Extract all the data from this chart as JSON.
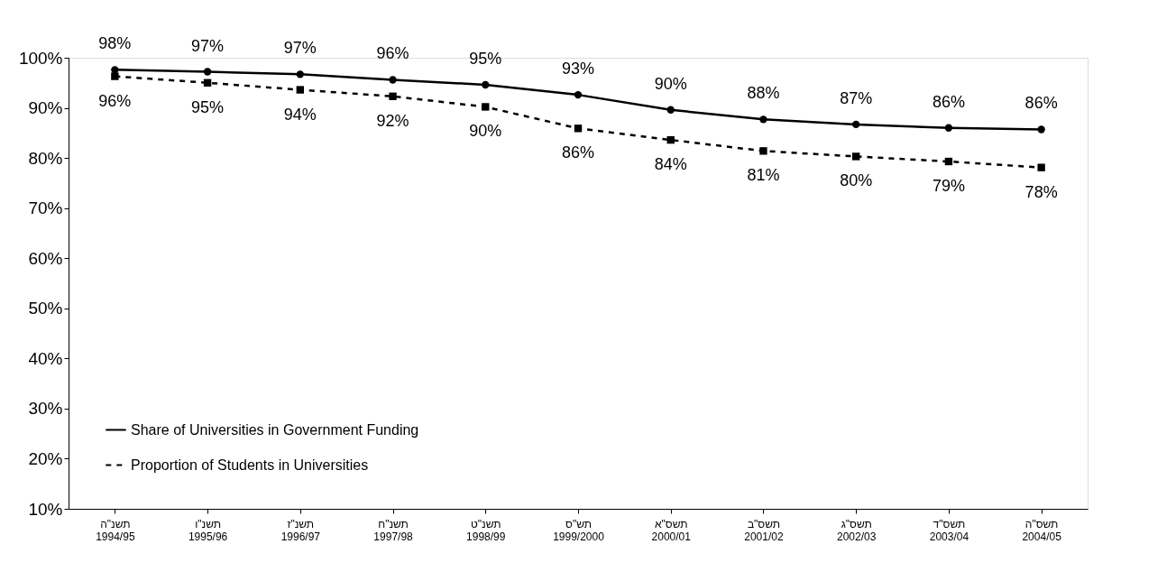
{
  "chart_data": {
    "type": "line",
    "categories": [
      "תשנ\"ה\n1994/95",
      "תשנ\"ו\n1995/96",
      "תשנ\"ז\n1996/97",
      "תשנ\"ח\n1997/98",
      "תשנ\"ט\n1998/99",
      "תש\"ס\n1999/2000",
      "תשס\"א\n2000/01",
      "תשס\"ב\n2001/02",
      "תשס\"ג\n2002/03",
      "תשס\"ד\n2003/04",
      "תשס\"ה\n2004/05"
    ],
    "series": [
      {
        "name": "Share of Universities in Government Funding",
        "color": "#000000",
        "marker": "circle",
        "line_style": "solid",
        "values": [
          97.6,
          97.2,
          96.7,
          95.6,
          94.6,
          92.6,
          89.6,
          87.7,
          86.7,
          86.0,
          85.7
        ],
        "value_labels": [
          "98%",
          "97%",
          "97%",
          "96%",
          "95%",
          "93%",
          "90%",
          "88%",
          "87%",
          "86%",
          "86%"
        ]
      },
      {
        "name": "Proportion of Students in Universities",
        "color": "#000000",
        "marker": "square",
        "line_style": "dashed",
        "values": [
          96.3,
          95.0,
          93.6,
          92.3,
          90.2,
          85.9,
          83.6,
          81.4,
          80.3,
          79.3,
          78.1
        ],
        "value_labels": [
          "96%",
          "95%",
          "94%",
          "92%",
          "90%",
          "86%",
          "84%",
          "81%",
          "80%",
          "79%",
          "78%"
        ]
      }
    ],
    "ylim": [
      10,
      100
    ],
    "yticks": [
      {
        "value": 10,
        "label": "10%"
      },
      {
        "value": 20,
        "label": "20%"
      },
      {
        "value": 30,
        "label": "30%"
      },
      {
        "value": 40,
        "label": "40%"
      },
      {
        "value": 50,
        "label": "50%"
      },
      {
        "value": 60,
        "label": "60%"
      },
      {
        "value": 70,
        "label": "70%"
      },
      {
        "value": 80,
        "label": "80%"
      },
      {
        "value": 90,
        "label": "90%"
      },
      {
        "value": 100,
        "label": "100%"
      }
    ],
    "grid": false,
    "legend": "bottom left"
  }
}
